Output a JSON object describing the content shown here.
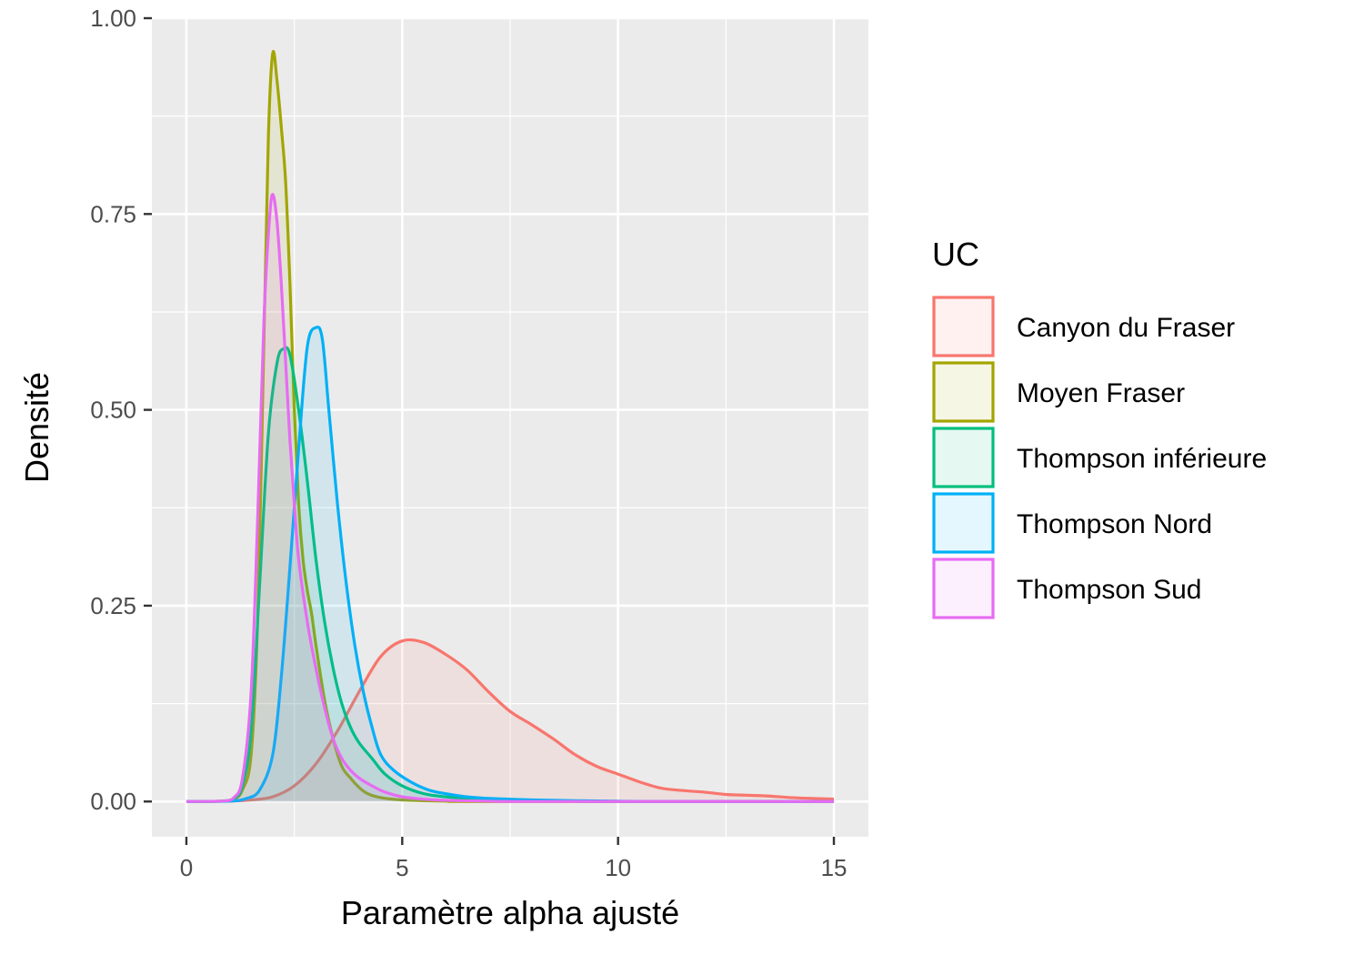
{
  "chart_data": {
    "type": "area",
    "xlabel": "Paramètre alpha ajusté",
    "ylabel": "Densité",
    "xlim": [
      -0.8,
      15.8
    ],
    "ylim": [
      -0.045,
      1.0
    ],
    "x_ticks": [
      0,
      5,
      10,
      15
    ],
    "x_tick_labels": [
      "0",
      "5",
      "10",
      "15"
    ],
    "y_ticks": [
      0,
      0.25,
      0.5,
      0.75,
      1.0
    ],
    "y_tick_labels": [
      "0.00",
      "0.25",
      "0.50",
      "0.75",
      "1.00"
    ],
    "grid": true,
    "legend": {
      "title": "UC",
      "position": "right"
    },
    "series": [
      {
        "name": "Canyon du Fraser",
        "color": "#F8766D",
        "points": [
          [
            0,
            0
          ],
          [
            1,
            0.0005
          ],
          [
            1.5,
            0.002
          ],
          [
            2,
            0.006
          ],
          [
            2.5,
            0.02
          ],
          [
            3,
            0.048
          ],
          [
            3.5,
            0.09
          ],
          [
            4,
            0.14
          ],
          [
            4.5,
            0.185
          ],
          [
            5,
            0.205
          ],
          [
            5.5,
            0.203
          ],
          [
            6,
            0.188
          ],
          [
            6.5,
            0.168
          ],
          [
            7,
            0.14
          ],
          [
            7.5,
            0.115
          ],
          [
            8,
            0.098
          ],
          [
            8.5,
            0.08
          ],
          [
            9,
            0.06
          ],
          [
            9.5,
            0.045
          ],
          [
            10,
            0.035
          ],
          [
            10.5,
            0.025
          ],
          [
            11,
            0.017
          ],
          [
            11.5,
            0.014
          ],
          [
            12,
            0.012
          ],
          [
            12.5,
            0.009
          ],
          [
            13,
            0.008
          ],
          [
            13.5,
            0.007
          ],
          [
            14,
            0.005
          ],
          [
            14.5,
            0.004
          ],
          [
            15,
            0.003
          ]
        ]
      },
      {
        "name": "Moyen Fraser",
        "color": "#A3A500",
        "points": [
          [
            0,
            0
          ],
          [
            0.8,
            0.0005
          ],
          [
            1.1,
            0.003
          ],
          [
            1.3,
            0.015
          ],
          [
            1.5,
            0.06
          ],
          [
            1.65,
            0.23
          ],
          [
            1.8,
            0.6
          ],
          [
            1.9,
            0.85
          ],
          [
            2.0,
            0.955
          ],
          [
            2.1,
            0.92
          ],
          [
            2.2,
            0.86
          ],
          [
            2.3,
            0.79
          ],
          [
            2.4,
            0.66
          ],
          [
            2.5,
            0.5
          ],
          [
            2.6,
            0.38
          ],
          [
            2.7,
            0.31
          ],
          [
            2.8,
            0.27
          ],
          [
            2.9,
            0.24
          ],
          [
            3.0,
            0.2
          ],
          [
            3.2,
            0.13
          ],
          [
            3.4,
            0.08
          ],
          [
            3.6,
            0.045
          ],
          [
            3.8,
            0.03
          ],
          [
            4.0,
            0.018
          ],
          [
            4.2,
            0.01
          ],
          [
            4.5,
            0.005
          ],
          [
            5,
            0.002
          ],
          [
            6,
            0.0005
          ],
          [
            7,
            0
          ],
          [
            15,
            0
          ]
        ]
      },
      {
        "name": "Thompson inférieure",
        "color": "#00BF7D",
        "points": [
          [
            0,
            0
          ],
          [
            0.8,
            0.0005
          ],
          [
            1.1,
            0.004
          ],
          [
            1.3,
            0.02
          ],
          [
            1.5,
            0.09
          ],
          [
            1.7,
            0.28
          ],
          [
            1.9,
            0.47
          ],
          [
            2.1,
            0.56
          ],
          [
            2.25,
            0.578
          ],
          [
            2.4,
            0.57
          ],
          [
            2.6,
            0.5
          ],
          [
            2.8,
            0.41
          ],
          [
            3.0,
            0.31
          ],
          [
            3.2,
            0.23
          ],
          [
            3.4,
            0.17
          ],
          [
            3.6,
            0.125
          ],
          [
            3.8,
            0.095
          ],
          [
            4.0,
            0.075
          ],
          [
            4.3,
            0.055
          ],
          [
            4.6,
            0.035
          ],
          [
            5,
            0.02
          ],
          [
            5.5,
            0.01
          ],
          [
            6,
            0.006
          ],
          [
            6.5,
            0.004
          ],
          [
            7,
            0.002
          ],
          [
            8,
            0.001
          ],
          [
            9,
            0.0005
          ],
          [
            10,
            0
          ],
          [
            15,
            0
          ]
        ]
      },
      {
        "name": "Thompson Nord",
        "color": "#00B0F6",
        "points": [
          [
            0,
            0
          ],
          [
            1,
            0.0005
          ],
          [
            1.4,
            0.004
          ],
          [
            1.7,
            0.015
          ],
          [
            2.0,
            0.06
          ],
          [
            2.2,
            0.16
          ],
          [
            2.4,
            0.3
          ],
          [
            2.6,
            0.45
          ],
          [
            2.8,
            0.58
          ],
          [
            3.0,
            0.605
          ],
          [
            3.15,
            0.59
          ],
          [
            3.3,
            0.5
          ],
          [
            3.5,
            0.38
          ],
          [
            3.7,
            0.28
          ],
          [
            3.9,
            0.2
          ],
          [
            4.1,
            0.14
          ],
          [
            4.3,
            0.095
          ],
          [
            4.5,
            0.06
          ],
          [
            4.8,
            0.04
          ],
          [
            5.2,
            0.025
          ],
          [
            5.6,
            0.015
          ],
          [
            6,
            0.01
          ],
          [
            6.5,
            0.006
          ],
          [
            7,
            0.004
          ],
          [
            8,
            0.002
          ],
          [
            9,
            0.001
          ],
          [
            10,
            0.0005
          ],
          [
            11,
            0
          ],
          [
            15,
            0
          ]
        ]
      },
      {
        "name": "Thompson Sud",
        "color": "#E76BF3",
        "points": [
          [
            0,
            0
          ],
          [
            0.8,
            0.0005
          ],
          [
            1.1,
            0.005
          ],
          [
            1.3,
            0.03
          ],
          [
            1.5,
            0.14
          ],
          [
            1.65,
            0.36
          ],
          [
            1.8,
            0.62
          ],
          [
            1.92,
            0.74
          ],
          [
            2.0,
            0.775
          ],
          [
            2.1,
            0.74
          ],
          [
            2.2,
            0.66
          ],
          [
            2.3,
            0.56
          ],
          [
            2.4,
            0.46
          ],
          [
            2.5,
            0.38
          ],
          [
            2.6,
            0.31
          ],
          [
            2.8,
            0.23
          ],
          [
            3.0,
            0.17
          ],
          [
            3.2,
            0.12
          ],
          [
            3.4,
            0.08
          ],
          [
            3.6,
            0.055
          ],
          [
            3.8,
            0.04
          ],
          [
            4.0,
            0.03
          ],
          [
            4.3,
            0.02
          ],
          [
            4.6,
            0.012
          ],
          [
            5,
            0.006
          ],
          [
            5.5,
            0.003
          ],
          [
            6,
            0.0015
          ],
          [
            7,
            0.0005
          ],
          [
            8,
            0
          ],
          [
            15,
            0
          ]
        ]
      }
    ]
  }
}
